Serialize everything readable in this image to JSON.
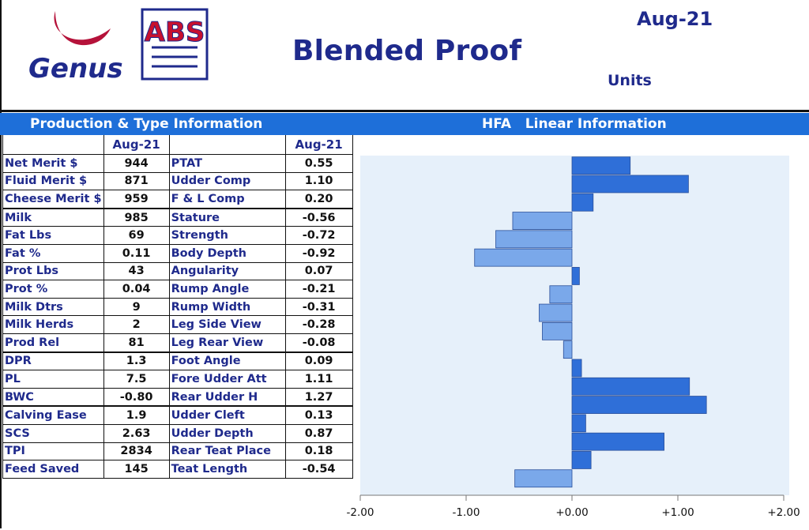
{
  "header": {
    "title": "Blended Proof",
    "date": "Aug-21",
    "units": "Units",
    "logo_genus": "Genus",
    "logo_abs": "ABS"
  },
  "sections": {
    "production": "Production & Type Information",
    "linear": "HFA   Linear Information"
  },
  "table": {
    "col_header_1": "Aug-21",
    "col_header_2": "Aug-21",
    "production_rows": [
      {
        "label": "Net Merit $",
        "value": "944"
      },
      {
        "label": "Fluid Merit $",
        "value": "871"
      },
      {
        "label": "Cheese Merit $",
        "value": "959"
      },
      {
        "label": "Milk",
        "value": "985"
      },
      {
        "label": "Fat Lbs",
        "value": "69"
      },
      {
        "label": "Fat %",
        "value": "0.11"
      },
      {
        "label": "Prot Lbs",
        "value": "43"
      },
      {
        "label": "Prot %",
        "value": "0.04"
      },
      {
        "label": "Milk Dtrs",
        "value": "9"
      },
      {
        "label": "Milk Herds",
        "value": "2"
      },
      {
        "label": "Prod Rel",
        "value": "81"
      },
      {
        "label": "DPR",
        "value": "1.3"
      },
      {
        "label": "PL",
        "value": "7.5"
      },
      {
        "label": "BWC",
        "value": "-0.80"
      },
      {
        "label": "Calving Ease",
        "value": "1.9"
      },
      {
        "label": "SCS",
        "value": "2.63"
      },
      {
        "label": "TPI",
        "value": "2834"
      },
      {
        "label": "Feed Saved",
        "value": "145"
      }
    ],
    "type_rows": [
      {
        "label": "PTAT",
        "value": "0.55"
      },
      {
        "label": "Udder Comp",
        "value": "1.10"
      },
      {
        "label": "F & L Comp",
        "value": "0.20"
      },
      {
        "label": "Stature",
        "value": "-0.56"
      },
      {
        "label": "Strength",
        "value": "-0.72"
      },
      {
        "label": "Body Depth",
        "value": "-0.92"
      },
      {
        "label": "Angularity",
        "value": "0.07"
      },
      {
        "label": "Rump Angle",
        "value": "-0.21"
      },
      {
        "label": "Rump Width",
        "value": "-0.31"
      },
      {
        "label": "Leg Side View",
        "value": "-0.28"
      },
      {
        "label": "Leg Rear View",
        "value": "-0.08"
      },
      {
        "label": "Foot Angle",
        "value": "0.09"
      },
      {
        "label": "Fore Udder Att",
        "value": "1.11"
      },
      {
        "label": "Rear Udder H",
        "value": "1.27"
      },
      {
        "label": "Udder Cleft",
        "value": "0.13"
      },
      {
        "label": "Udder Depth",
        "value": "0.87"
      },
      {
        "label": "Rear Teat Place",
        "value": "0.18"
      },
      {
        "label": "Teat Length",
        "value": "-0.54"
      }
    ]
  },
  "colors": {
    "brand_blue": "#1f2a8c",
    "section_bar": "#1e6fd9",
    "bar_fill_strong": "#2f6fd8",
    "bar_fill_light": "#7aa8ea",
    "plot_bg": "#e6f0fa",
    "genus_red": "#b5123a",
    "abs_red": "#c8102e"
  },
  "chart_data": {
    "type": "bar",
    "orientation": "horizontal",
    "categories": [
      "PTAT",
      "Udder Comp",
      "F & L Comp",
      "Stature",
      "Strength",
      "Body Depth",
      "Angularity",
      "Rump Angle",
      "Rump Width",
      "Leg Side View",
      "Leg Rear View",
      "Foot Angle",
      "Fore Udder Att",
      "Rear Udder H",
      "Udder Cleft",
      "Udder Depth",
      "Rear Teat Place",
      "Teat Length"
    ],
    "values": [
      0.55,
      1.1,
      0.2,
      -0.56,
      -0.72,
      -0.92,
      0.07,
      -0.21,
      -0.31,
      -0.28,
      -0.08,
      0.09,
      1.11,
      1.27,
      0.13,
      0.87,
      0.18,
      -0.54
    ],
    "xlim": [
      -2.0,
      2.0
    ],
    "xticks": [
      -2.0,
      -1.0,
      0.0,
      1.0,
      2.0
    ],
    "xtick_labels": [
      "-2.00",
      "-1.00",
      "+0.00",
      "+1.00",
      "+2.00"
    ],
    "grid": false,
    "title": "",
    "xlabel": "",
    "ylabel": ""
  }
}
